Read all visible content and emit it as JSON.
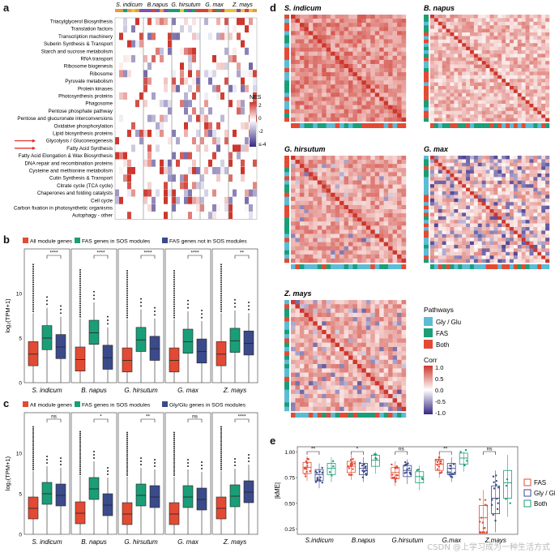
{
  "letters": {
    "a": "a",
    "b": "b",
    "c": "c",
    "d": "d",
    "e": "e"
  },
  "panel_a": {
    "species": [
      "S. indicum",
      "B.napus",
      "G. hirsutum",
      "G. max",
      "Z. mays"
    ],
    "pathways": [
      "Triacylglycerol Biosynthesis",
      "Translation factors",
      "Transcription machinery",
      "Suberin Synthesis & Transport",
      "Starch and sucrose metabolism",
      "RNA transport",
      "Ribosome biogenesis",
      "Ribosome",
      "Pyruvate metabolism",
      "Protein kinases",
      "Photosynthesis proteins",
      "Phagosome",
      "Pentose phosphate pathway",
      "Pentose and glucuronate interconversions",
      "Oxidative phosphorylation",
      "Lipid biosynthesis proteins",
      "Glycolysis / Gluconeogenesis",
      "Fatty Acid Synthesis",
      "Fatty Acid Elongation & Wax Biosynthesis",
      "DNA repair and recombination proteins",
      "Cysteine and methionine metabolism",
      "Cutin Synthesis & Transport",
      "Citrate cycle (TCA cycle)",
      "Chaperones and folding catalysts",
      "Cell cycle",
      "Carbon fixation in photosynthetic organisms",
      "Autophagy - other"
    ],
    "highlighted": [
      "Glycolysis / Gluconeogenesis",
      "Fatty Acid Synthesis"
    ],
    "legend_title": "NES",
    "legend_ticks": [
      "2",
      "0",
      "-2",
      "≤-4"
    ]
  },
  "panel_b": {
    "legend": [
      "All module genes",
      "FAS genes in SOS modules",
      "FAS genes not in SOS modules"
    ],
    "ylabel": "log₂(TPM+1)",
    "yticks": [
      "0",
      "5",
      "10"
    ],
    "species": [
      "S. indicum",
      "B. napus",
      "G. hirsutum",
      "G. max",
      "Z. mays"
    ],
    "significance": [
      "****",
      "****",
      "****",
      "****",
      "**"
    ]
  },
  "panel_c": {
    "legend": [
      "All module genes",
      "FAS genes in SOS modules",
      "Gly/Glu genes in SOS modules"
    ],
    "ylabel": "log₂(TPM+1)",
    "yticks": [
      "0",
      "5",
      "10"
    ],
    "species": [
      "S. indicum",
      "B. napus",
      "G. hirsutum",
      "G. max",
      "Z. mays"
    ],
    "significance": [
      "ns",
      "*",
      "**",
      "ns",
      "****"
    ]
  },
  "panel_d": {
    "titles": [
      "S. indicum",
      "B. napus",
      "G. hirsutum",
      "G. max",
      "Z. mays"
    ],
    "legend_pathways_title": "Pathways",
    "legend_pathways": [
      "Gly / Glu",
      "FAS",
      "Both"
    ],
    "legend_corr_title": "Corr",
    "legend_corr_ticks": [
      "1.0",
      "0.5",
      "0.0",
      "-0.5",
      "-1.0"
    ]
  },
  "panel_e": {
    "ylabel": "|kME|",
    "yticks": [
      "0.25",
      "0.50",
      "0.75",
      "1.00"
    ],
    "species": [
      "S.indicum",
      "B.napus",
      "G.hirsutum",
      "G.max",
      "Z.mays"
    ],
    "significance": [
      "**",
      "*",
      "ns",
      "**",
      "ns"
    ],
    "legend": [
      "FAS",
      "Gly / Glu",
      "Both"
    ]
  },
  "watermark": "CSDN @上学习成为一种生活方式",
  "colors": {
    "red": "#e34a33",
    "green": "#1a9e77",
    "navy": "#3b4a8a",
    "teal": "#2b9cc5",
    "lightblue": "#5bbcd6",
    "heat_red": "#d94232",
    "heat_blue": "#3a2c8a"
  }
}
